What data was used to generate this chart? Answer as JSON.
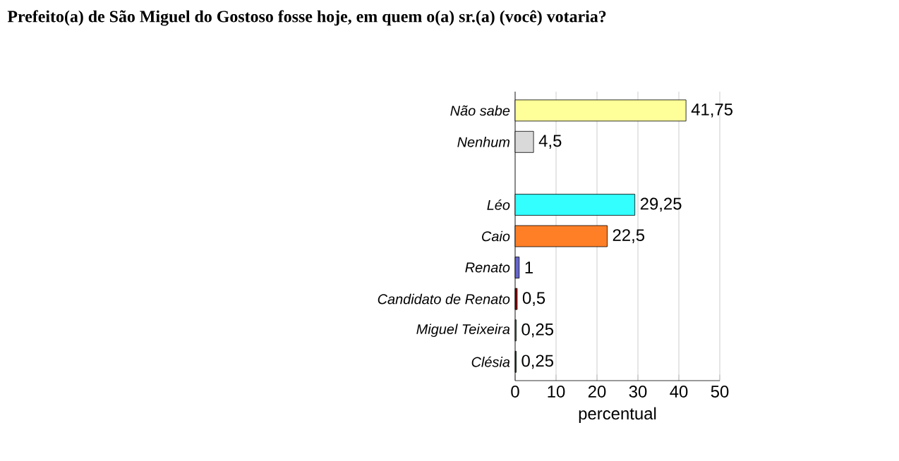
{
  "chart_data": {
    "type": "bar",
    "orientation": "horizontal",
    "title": "Prefeito(a) de São Miguel do Gostoso fosse hoje, em quem o(a) sr.(a) (você) votaria?",
    "categories": [
      "Não sabe",
      "Nenhum",
      null,
      "Léo",
      "Caio",
      "Renato",
      "Candidato de Renato",
      "Miguel Teixeira",
      "Clésia"
    ],
    "values": [
      41.75,
      4.5,
      null,
      29.25,
      22.5,
      1,
      0.5,
      0.25,
      0.25
    ],
    "value_labels": [
      "41,75",
      "4,5",
      null,
      "29,25",
      "22,5",
      "1",
      "0,5",
      "0,25",
      "0,25"
    ],
    "colors": [
      "#ffff99",
      "#d9d9d9",
      "#ffffff",
      "#33ffff",
      "#ff7f27",
      "#6666cc",
      "#8b0000",
      "#339933",
      "#006600"
    ],
    "xlim": [
      0,
      50
    ],
    "xticks": [
      0,
      10,
      20,
      30,
      40,
      50
    ],
    "xlabel": "percentual",
    "grid": "x"
  }
}
